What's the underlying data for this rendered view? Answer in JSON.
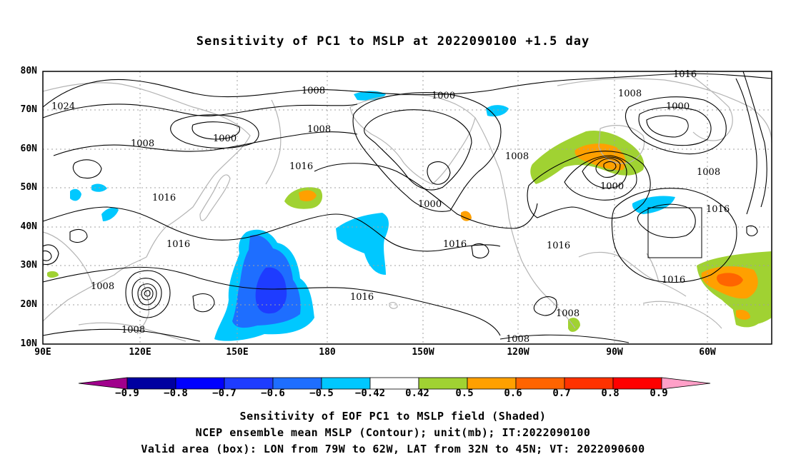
{
  "title": "Sensitivity of PC1 to MSLP at 2022090100 +1.5 day",
  "lat_labels": [
    "80N",
    "70N",
    "60N",
    "50N",
    "40N",
    "30N",
    "20N",
    "10N"
  ],
  "lon_labels": [
    "90E",
    "120E",
    "150E",
    "180",
    "150W",
    "120W",
    "90W",
    "60W"
  ],
  "contour_labels": [
    "1024",
    "1008",
    "1008",
    "1000",
    "1008",
    "1016",
    "1016",
    "1016",
    "1008",
    "1008",
    "1016",
    "1016",
    "1000",
    "1000",
    "1016",
    "1008",
    "1008",
    "1000",
    "1008",
    "1000",
    "1016",
    "1016",
    "1008",
    "1016",
    "1008",
    "1016"
  ],
  "colorbar": {
    "labels": [
      "−0.9",
      "−0.8",
      "−0.7",
      "−0.6",
      "−0.5",
      "−0.42",
      "0.42",
      "0.5",
      "0.6",
      "0.7",
      "0.8",
      "0.9"
    ],
    "colors": [
      "#a0008c",
      "#0000a0",
      "#0000ff",
      "#1e3cff",
      "#1e6eff",
      "#00c8ff",
      "#ffffff",
      "#a0d232",
      "#ffa000",
      "#ff6400",
      "#ff3200",
      "#ff0000",
      "#ffa0c8"
    ]
  },
  "footer": {
    "line1": "Sensitivity of EOF PC1 to MSLP field (Shaded)",
    "line2": "NCEP ensemble mean MSLP (Contour); unit(mb); IT:2022090100",
    "line3": "Valid area (box): LON from 79W to 62W, LAT from 32N to 45N; VT: 2022090600"
  }
}
